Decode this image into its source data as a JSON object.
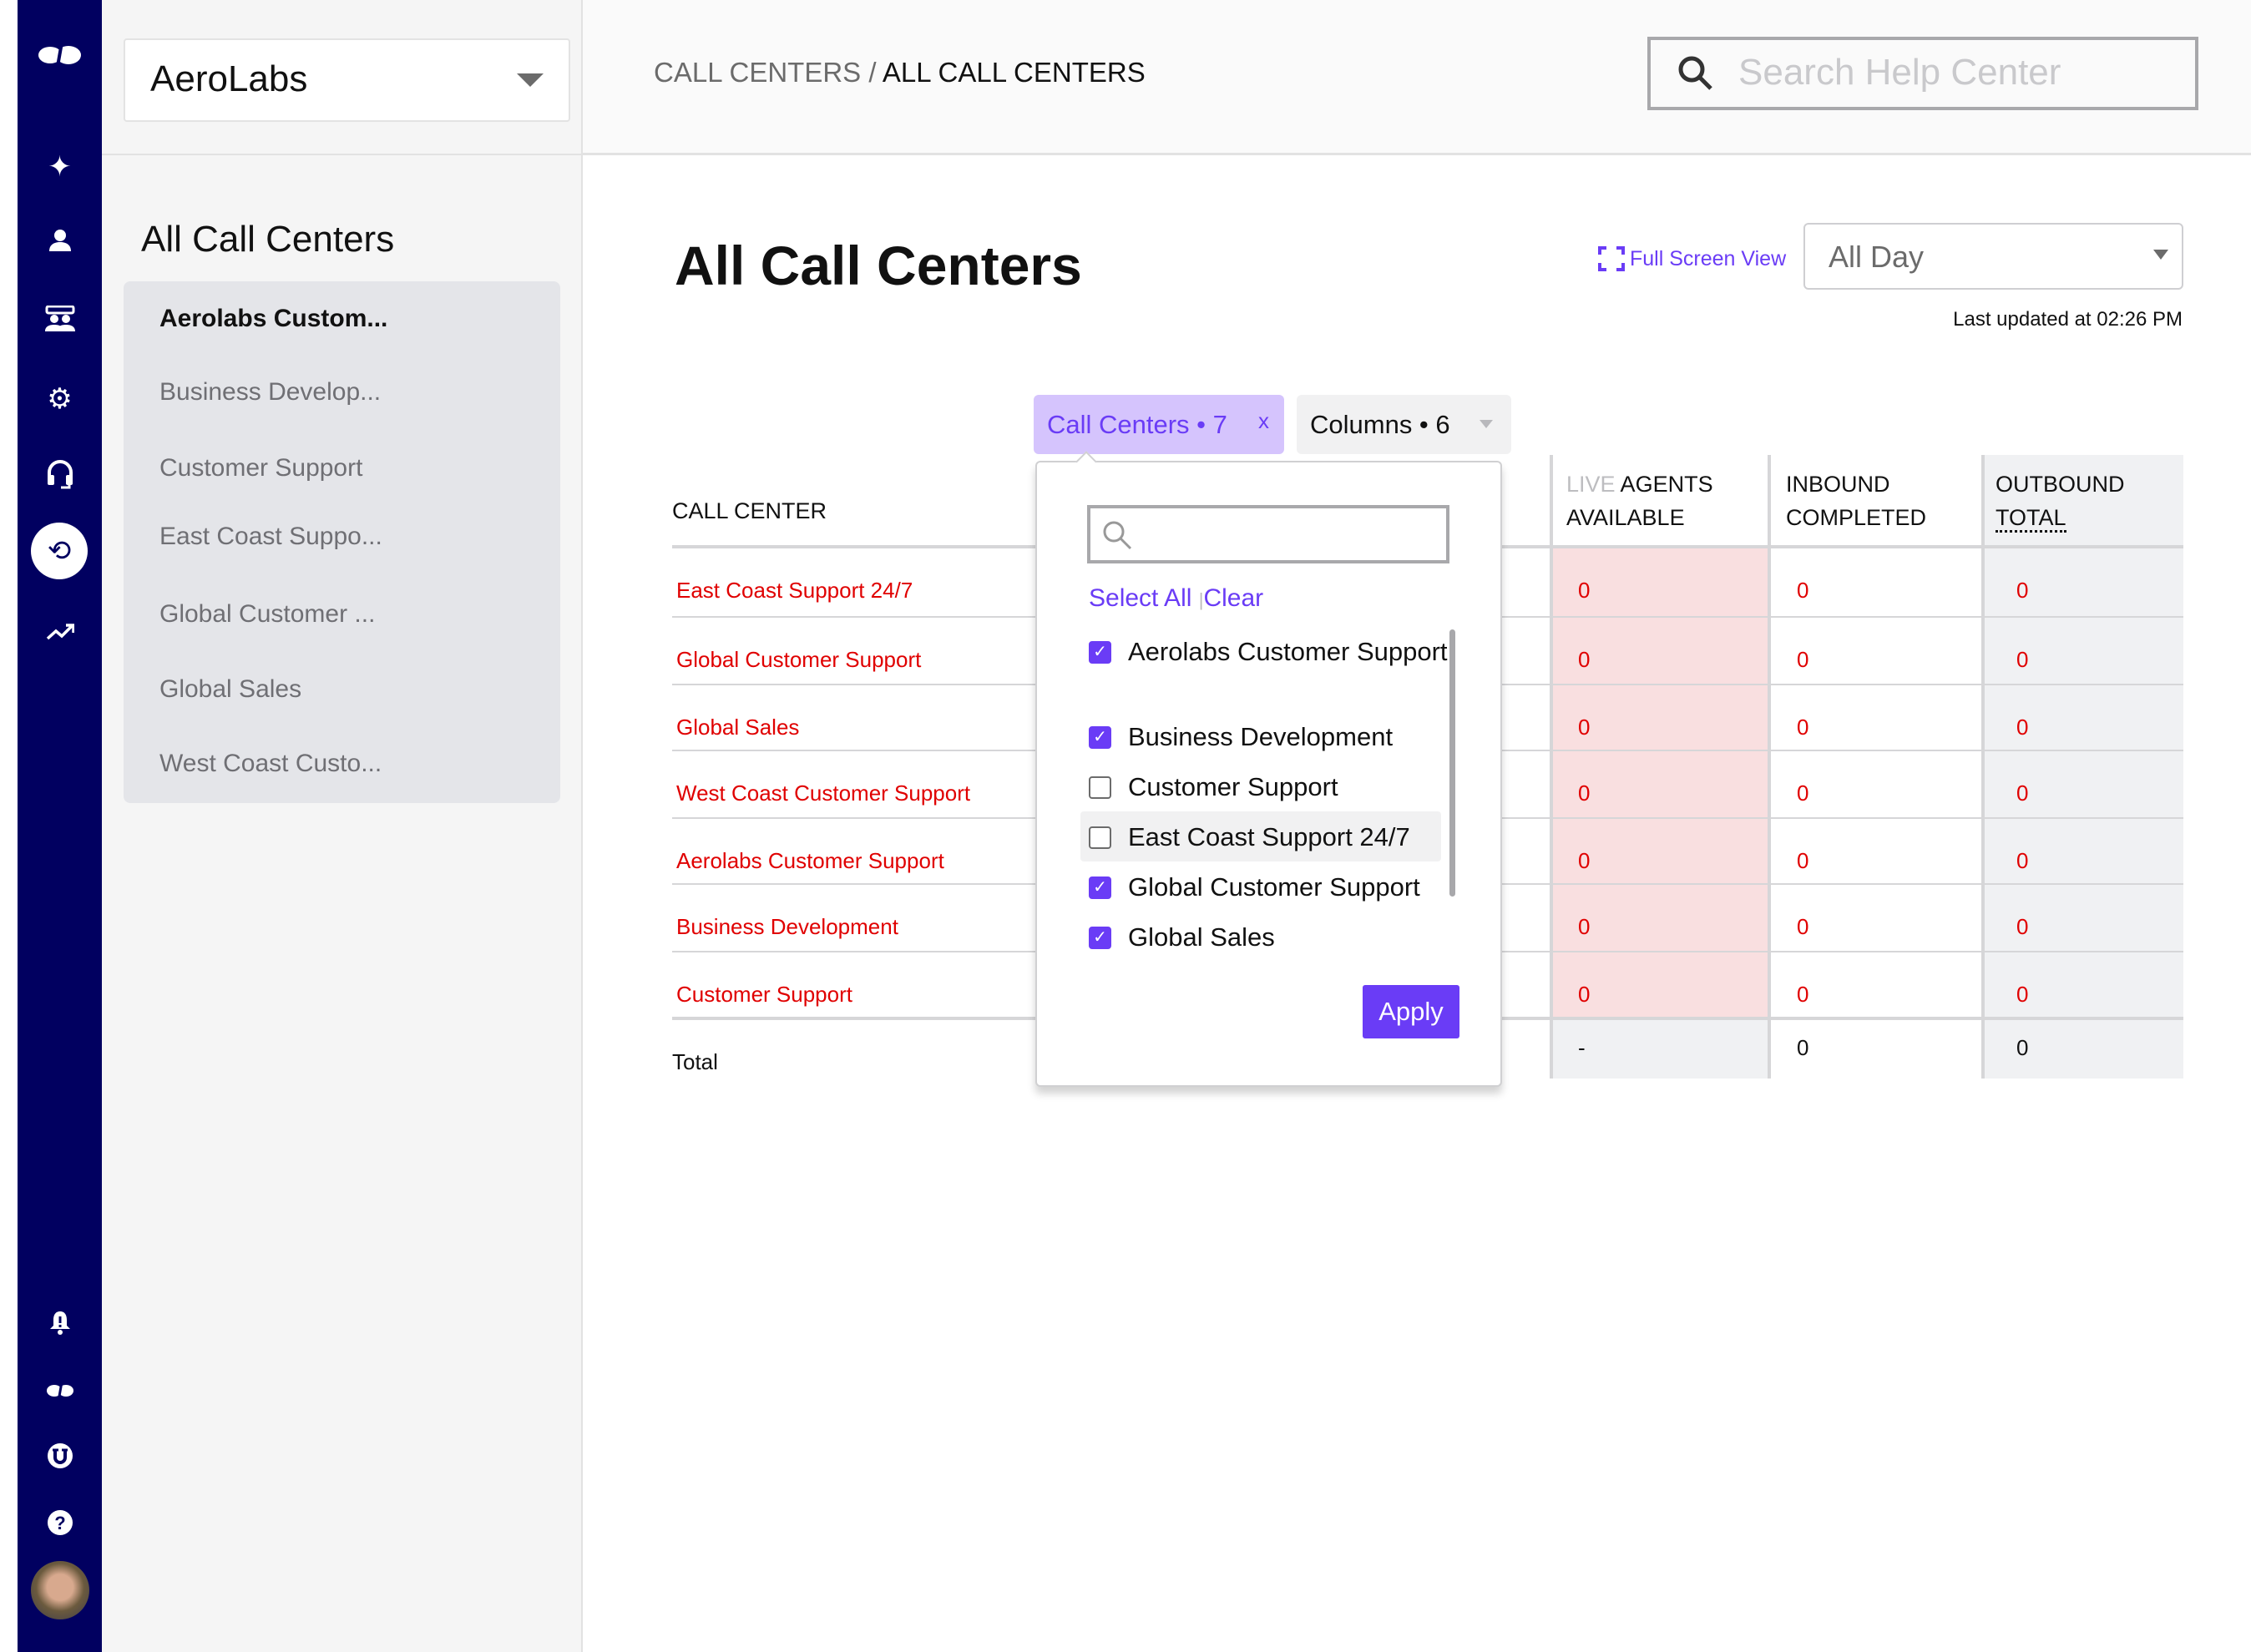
{
  "nav": {
    "icons": [
      "logo-icon",
      "sparkles-icon",
      "user-icon",
      "team-icon",
      "gear-icon",
      "headset-icon",
      "history-icon",
      "trending-icon",
      "bell-alert-icon",
      "logo-small-icon",
      "u-badge-icon",
      "help-icon",
      "avatar"
    ],
    "color": "#010060"
  },
  "sidebar": {
    "org": "AeroLabs",
    "title": "All Call Centers",
    "items": [
      "Aerolabs Custom...",
      "Business Develop...",
      "Customer Support",
      "East Coast Suppo...",
      "Global Customer ...",
      "Global Sales",
      "West Coast Custo..."
    ]
  },
  "header": {
    "breadcrumb_parent": "CALL CENTERS",
    "breadcrumb_sep": " / ",
    "breadcrumb_current": "ALL CALL CENTERS",
    "search_placeholder": "Search Help Center"
  },
  "main": {
    "title": "All Call Centers",
    "full_screen": "Full Screen View",
    "range": "All Day",
    "last_updated": "Last updated at 02:26 PM",
    "chip_call_centers": "Call Centers • 7",
    "chip_close": "x",
    "chip_columns": "Columns • 6",
    "columns": {
      "name": "CALL CENTER",
      "live1": "LIVE",
      "live2": " AGENTS",
      "live3": "AVAILABLE",
      "in1": "INBOUND",
      "in2": "COMPLETED",
      "out1": "OUTBOUND",
      "out2": "TOTAL"
    },
    "rows": [
      {
        "name": "East Coast Support 24/7",
        "agents": "0",
        "inbound": "0",
        "outbound": "0"
      },
      {
        "name": "Global Customer Support",
        "agents": "0",
        "inbound": "0",
        "outbound": "0"
      },
      {
        "name": "Global Sales",
        "agents": "0",
        "inbound": "0",
        "outbound": "0"
      },
      {
        "name": "West Coast Customer Support",
        "agents": "0",
        "inbound": "0",
        "outbound": "0"
      },
      {
        "name": "Aerolabs Customer Support",
        "agents": "0",
        "inbound": "0",
        "outbound": "0"
      },
      {
        "name": "Business Development",
        "agents": "0",
        "inbound": "0",
        "outbound": "0"
      },
      {
        "name": "Customer Support",
        "agents": "0",
        "inbound": "0",
        "outbound": "0"
      }
    ],
    "total": {
      "label": "Total",
      "agents": "-",
      "inbound": "0",
      "outbound": "0"
    }
  },
  "dropdown": {
    "select_all": "Select All",
    "sep": "|",
    "clear": "Clear",
    "apply": "Apply",
    "options": [
      {
        "label": "Aerolabs Customer Support",
        "checked": true
      },
      {
        "label": "Business Development",
        "checked": true
      },
      {
        "label": "Customer Support",
        "checked": false
      },
      {
        "label": "East Coast Support 24/7",
        "checked": false
      },
      {
        "label": "Global Customer Support",
        "checked": true
      },
      {
        "label": "Global Sales",
        "checked": true
      }
    ]
  },
  "colors": {
    "accent": "#6a3cf6",
    "alert": "#e00000",
    "pink_cell": "#f9dfe0"
  }
}
